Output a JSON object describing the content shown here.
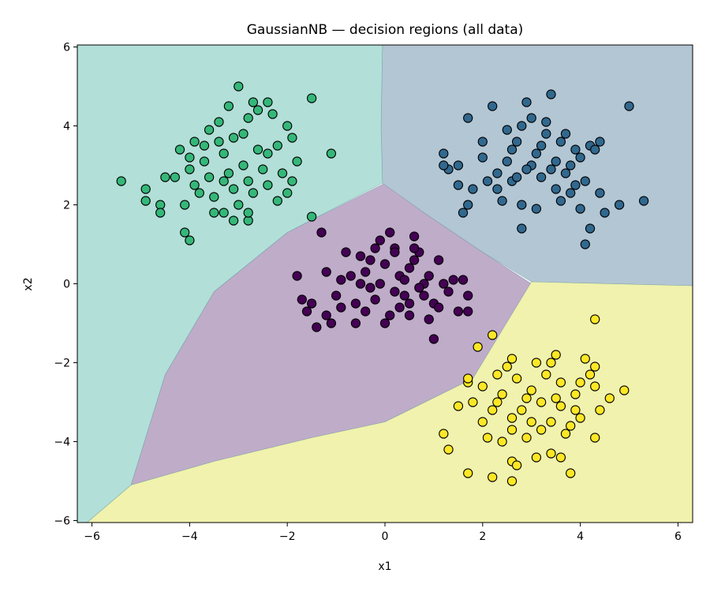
{
  "chart_data": {
    "type": "scatter",
    "title": "GaussianNB — decision regions (all data)",
    "xlabel": "x1",
    "ylabel": "x2",
    "xlim": [
      -6.3,
      6.3
    ],
    "ylim": [
      -6.05,
      6.05
    ],
    "xticks": [
      -6,
      -4,
      -2,
      0,
      2,
      4,
      6
    ],
    "yticks": [
      -6,
      -4,
      -2,
      0,
      2,
      4,
      6
    ],
    "xtick_labels": [
      "−6",
      "−4",
      "−2",
      "0",
      "2",
      "4",
      "6"
    ],
    "ytick_labels": [
      "−6",
      "−4",
      "−2",
      "0",
      "2",
      "4",
      "6"
    ],
    "grid": false,
    "legend": "none",
    "region_colors": {
      "class0": "#bfacc9",
      "class1": "#b3c6d4",
      "class2": "#b2dfd8",
      "class3": "#f0f2ad"
    },
    "point_edge_color": "#000000",
    "regions": [
      {
        "class": "class0",
        "boundary": [
          [
            -5.2,
            -5.1
          ],
          [
            -3.5,
            -4.5
          ],
          [
            -1.5,
            -3.9
          ],
          [
            0,
            -3.5
          ],
          [
            1.8,
            -2.4
          ],
          [
            3.0,
            0.0
          ],
          [
            2.0,
            0.8
          ],
          [
            0.8,
            1.8
          ],
          [
            0,
            2.55
          ],
          [
            -2.0,
            1.3
          ],
          [
            -3.5,
            -0.2
          ],
          [
            -4.5,
            -2.3
          ]
        ]
      },
      {
        "class": "class1",
        "boundary": [
          [
            -0.05,
            6.05
          ],
          [
            6.3,
            6.05
          ],
          [
            6.3,
            -0.05
          ],
          [
            3.0,
            0.05
          ],
          [
            2.0,
            0.8
          ],
          [
            0.8,
            1.8
          ],
          [
            -0.05,
            2.55
          ],
          [
            -0.08,
            4.0
          ]
        ]
      },
      {
        "class": "class2",
        "boundary": [
          [
            -6.3,
            6.05
          ],
          [
            -0.05,
            6.05
          ],
          [
            -0.08,
            4.0
          ],
          [
            -0.05,
            2.55
          ],
          [
            -2.0,
            1.3
          ],
          [
            -3.5,
            -0.2
          ],
          [
            -4.5,
            -2.3
          ],
          [
            -5.2,
            -5.1
          ],
          [
            -6.1,
            -6.05
          ],
          [
            -6.3,
            -6.05
          ]
        ]
      },
      {
        "class": "class3",
        "boundary": [
          [
            -6.1,
            -6.05
          ],
          [
            6.3,
            -6.05
          ],
          [
            6.3,
            -0.05
          ],
          [
            3.0,
            0.05
          ],
          [
            1.8,
            -2.4
          ],
          [
            0,
            -3.5
          ],
          [
            -1.5,
            -3.9
          ],
          [
            -3.5,
            -4.5
          ],
          [
            -5.2,
            -5.1
          ]
        ]
      }
    ],
    "series": [
      {
        "class": "class0",
        "color": "#440154",
        "points": [
          [
            -0.5,
            0.0
          ],
          [
            -0.3,
            0.6
          ],
          [
            -0.1,
            1.1
          ],
          [
            0.2,
            0.9
          ],
          [
            0.5,
            0.4
          ],
          [
            0.8,
            -0.3
          ],
          [
            1.1,
            0.6
          ],
          [
            1.4,
            0.1
          ],
          [
            -0.9,
            -0.6
          ],
          [
            -1.2,
            0.3
          ],
          [
            -0.6,
            -1.0
          ],
          [
            0.1,
            -0.8
          ],
          [
            0.4,
            -0.3
          ],
          [
            0.7,
            0.8
          ],
          [
            1.0,
            -0.5
          ],
          [
            1.3,
            -0.2
          ],
          [
            -0.4,
            0.3
          ],
          [
            -0.2,
            -0.4
          ],
          [
            0.3,
            0.2
          ],
          [
            0.6,
            1.2
          ],
          [
            0.9,
            0.2
          ],
          [
            -1.5,
            -0.5
          ],
          [
            -1.1,
            -1.0
          ],
          [
            -0.8,
            0.8
          ],
          [
            0.0,
            0.5
          ],
          [
            0.2,
            -0.2
          ],
          [
            0.5,
            -0.8
          ],
          [
            0.8,
            0.0
          ],
          [
            1.1,
            -0.6
          ],
          [
            1.5,
            -0.7
          ],
          [
            -1.3,
            1.3
          ],
          [
            -1.8,
            0.2
          ],
          [
            -1.7,
            -0.4
          ],
          [
            -1.0,
            -0.3
          ],
          [
            -0.7,
            0.2
          ],
          [
            -0.3,
            -0.1
          ],
          [
            0.0,
            -1.0
          ],
          [
            0.3,
            -0.6
          ],
          [
            0.6,
            0.6
          ],
          [
            1.2,
            0.0
          ],
          [
            -0.5,
            0.7
          ],
          [
            -0.1,
            0.0
          ],
          [
            0.4,
            0.1
          ],
          [
            0.7,
            -0.1
          ],
          [
            1.6,
            0.1
          ],
          [
            -0.9,
            0.1
          ],
          [
            -0.6,
            -0.5
          ],
          [
            0.1,
            1.3
          ],
          [
            0.5,
            -0.5
          ],
          [
            1.0,
            -1.4
          ],
          [
            -1.4,
            -1.1
          ],
          [
            -1.6,
            -0.7
          ],
          [
            -1.2,
            -0.8
          ],
          [
            -0.4,
            -0.7
          ],
          [
            0.2,
            0.8
          ],
          [
            1.7,
            -0.3
          ],
          [
            -0.2,
            0.9
          ],
          [
            0.6,
            0.9
          ],
          [
            0.9,
            -0.9
          ],
          [
            1.7,
            -0.7
          ]
        ]
      },
      {
        "class": "class1",
        "color": "#31688e",
        "points": [
          [
            3.0,
            3.0
          ],
          [
            3.4,
            4.8
          ],
          [
            2.9,
            4.6
          ],
          [
            2.2,
            4.5
          ],
          [
            1.7,
            4.2
          ],
          [
            5.0,
            4.5
          ],
          [
            3.3,
            3.8
          ],
          [
            3.6,
            3.6
          ],
          [
            2.7,
            3.6
          ],
          [
            3.9,
            3.4
          ],
          [
            4.2,
            3.5
          ],
          [
            4.4,
            3.6
          ],
          [
            3.1,
            3.3
          ],
          [
            2.5,
            3.1
          ],
          [
            1.2,
            3.3
          ],
          [
            1.5,
            3.0
          ],
          [
            2.0,
            3.2
          ],
          [
            2.3,
            2.8
          ],
          [
            2.6,
            2.6
          ],
          [
            2.9,
            2.9
          ],
          [
            3.2,
            2.7
          ],
          [
            3.5,
            2.4
          ],
          [
            3.8,
            2.3
          ],
          [
            4.1,
            2.6
          ],
          [
            4.4,
            2.3
          ],
          [
            4.8,
            2.0
          ],
          [
            5.3,
            2.1
          ],
          [
            1.3,
            2.9
          ],
          [
            1.8,
            2.4
          ],
          [
            2.1,
            2.6
          ],
          [
            2.4,
            2.1
          ],
          [
            2.8,
            2.0
          ],
          [
            3.1,
            1.9
          ],
          [
            3.6,
            2.1
          ],
          [
            3.9,
            2.5
          ],
          [
            4.2,
            1.4
          ],
          [
            4.0,
            1.9
          ],
          [
            4.5,
            1.8
          ],
          [
            1.6,
            1.8
          ],
          [
            1.7,
            2.0
          ],
          [
            2.5,
            3.9
          ],
          [
            2.8,
            4.0
          ],
          [
            3.0,
            4.2
          ],
          [
            3.3,
            4.1
          ],
          [
            3.7,
            3.8
          ],
          [
            4.0,
            3.2
          ],
          [
            4.3,
            3.4
          ],
          [
            2.0,
            3.6
          ],
          [
            2.6,
            3.4
          ],
          [
            3.5,
            3.1
          ],
          [
            3.8,
            3.0
          ],
          [
            4.1,
            1.0
          ],
          [
            2.8,
            1.4
          ],
          [
            3.2,
            3.5
          ],
          [
            3.4,
            2.9
          ],
          [
            1.2,
            3.0
          ],
          [
            1.5,
            2.5
          ],
          [
            2.3,
            2.4
          ],
          [
            2.7,
            2.7
          ],
          [
            3.7,
            2.8
          ]
        ]
      },
      {
        "class": "class2",
        "color": "#35b779",
        "points": [
          [
            -3.0,
            5.0
          ],
          [
            -2.7,
            4.6
          ],
          [
            -3.2,
            4.5
          ],
          [
            -2.4,
            4.6
          ],
          [
            -2.8,
            4.2
          ],
          [
            -2.3,
            4.3
          ],
          [
            -2.0,
            4.0
          ],
          [
            -1.9,
            3.7
          ],
          [
            -3.4,
            4.1
          ],
          [
            -3.6,
            3.9
          ],
          [
            -3.9,
            3.6
          ],
          [
            -4.2,
            3.4
          ],
          [
            -3.1,
            3.7
          ],
          [
            -2.6,
            3.4
          ],
          [
            -2.2,
            3.5
          ],
          [
            -1.8,
            3.1
          ],
          [
            -3.3,
            3.3
          ],
          [
            -3.7,
            3.1
          ],
          [
            -4.0,
            3.2
          ],
          [
            -2.9,
            3.0
          ],
          [
            -2.5,
            2.9
          ],
          [
            -2.1,
            2.8
          ],
          [
            -1.9,
            2.6
          ],
          [
            -3.2,
            2.8
          ],
          [
            -3.6,
            2.7
          ],
          [
            -3.9,
            2.5
          ],
          [
            -4.3,
            2.7
          ],
          [
            -2.8,
            2.6
          ],
          [
            -2.4,
            2.5
          ],
          [
            -2.0,
            2.3
          ],
          [
            -3.1,
            2.4
          ],
          [
            -3.5,
            2.2
          ],
          [
            -3.8,
            2.3
          ],
          [
            -4.1,
            2.0
          ],
          [
            -2.7,
            2.3
          ],
          [
            -2.2,
            2.1
          ],
          [
            -3.0,
            2.0
          ],
          [
            -3.3,
            1.8
          ],
          [
            -4.5,
            2.7
          ],
          [
            -4.6,
            2.0
          ],
          [
            -5.4,
            2.6
          ],
          [
            -4.9,
            2.4
          ],
          [
            -4.9,
            2.1
          ],
          [
            -4.6,
            1.8
          ],
          [
            -4.1,
            1.3
          ],
          [
            -4.0,
            1.1
          ],
          [
            -3.1,
            1.6
          ],
          [
            -2.8,
            1.6
          ],
          [
            -2.8,
            1.8
          ],
          [
            -1.5,
            1.7
          ],
          [
            -1.5,
            4.7
          ],
          [
            -1.1,
            3.3
          ],
          [
            -3.4,
            3.6
          ],
          [
            -2.9,
            3.8
          ],
          [
            -3.5,
            1.8
          ],
          [
            -4.0,
            2.9
          ],
          [
            -3.7,
            3.5
          ],
          [
            -2.6,
            4.4
          ],
          [
            -3.3,
            2.6
          ],
          [
            -2.4,
            3.3
          ]
        ]
      },
      {
        "class": "class3",
        "color": "#fde725",
        "points": [
          [
            4.3,
            -0.9
          ],
          [
            2.2,
            -1.3
          ],
          [
            1.9,
            -1.6
          ],
          [
            2.6,
            -1.9
          ],
          [
            3.1,
            -2.0
          ],
          [
            3.5,
            -1.8
          ],
          [
            4.1,
            -1.9
          ],
          [
            4.3,
            -2.1
          ],
          [
            2.3,
            -2.3
          ],
          [
            2.7,
            -2.4
          ],
          [
            3.3,
            -2.3
          ],
          [
            3.6,
            -2.5
          ],
          [
            4.0,
            -2.5
          ],
          [
            4.3,
            -2.6
          ],
          [
            4.6,
            -2.9
          ],
          [
            4.9,
            -2.7
          ],
          [
            1.7,
            -2.5
          ],
          [
            2.0,
            -2.6
          ],
          [
            2.4,
            -2.8
          ],
          [
            2.9,
            -2.9
          ],
          [
            3.2,
            -3.0
          ],
          [
            3.6,
            -3.1
          ],
          [
            3.9,
            -3.2
          ],
          [
            4.4,
            -3.2
          ],
          [
            1.5,
            -3.1
          ],
          [
            1.8,
            -3.0
          ],
          [
            2.2,
            -3.2
          ],
          [
            2.6,
            -3.4
          ],
          [
            3.0,
            -3.5
          ],
          [
            3.4,
            -3.5
          ],
          [
            3.8,
            -3.6
          ],
          [
            4.0,
            -3.4
          ],
          [
            1.2,
            -3.8
          ],
          [
            1.3,
            -4.2
          ],
          [
            2.1,
            -3.9
          ],
          [
            2.4,
            -4.0
          ],
          [
            2.6,
            -3.7
          ],
          [
            2.9,
            -3.9
          ],
          [
            3.4,
            -4.3
          ],
          [
            3.7,
            -3.8
          ],
          [
            4.3,
            -3.9
          ],
          [
            1.7,
            -4.8
          ],
          [
            2.2,
            -4.9
          ],
          [
            2.6,
            -5.0
          ],
          [
            2.6,
            -4.5
          ],
          [
            3.1,
            -4.4
          ],
          [
            3.8,
            -4.8
          ],
          [
            1.7,
            -2.4
          ],
          [
            2.5,
            -2.1
          ],
          [
            3.0,
            -2.7
          ],
          [
            3.4,
            -2.0
          ],
          [
            4.2,
            -2.3
          ],
          [
            2.3,
            -3.0
          ],
          [
            2.8,
            -3.2
          ],
          [
            3.5,
            -2.9
          ],
          [
            3.9,
            -2.8
          ],
          [
            2.0,
            -3.5
          ],
          [
            3.2,
            -3.7
          ],
          [
            2.7,
            -4.6
          ],
          [
            3.6,
            -4.4
          ]
        ]
      }
    ]
  }
}
